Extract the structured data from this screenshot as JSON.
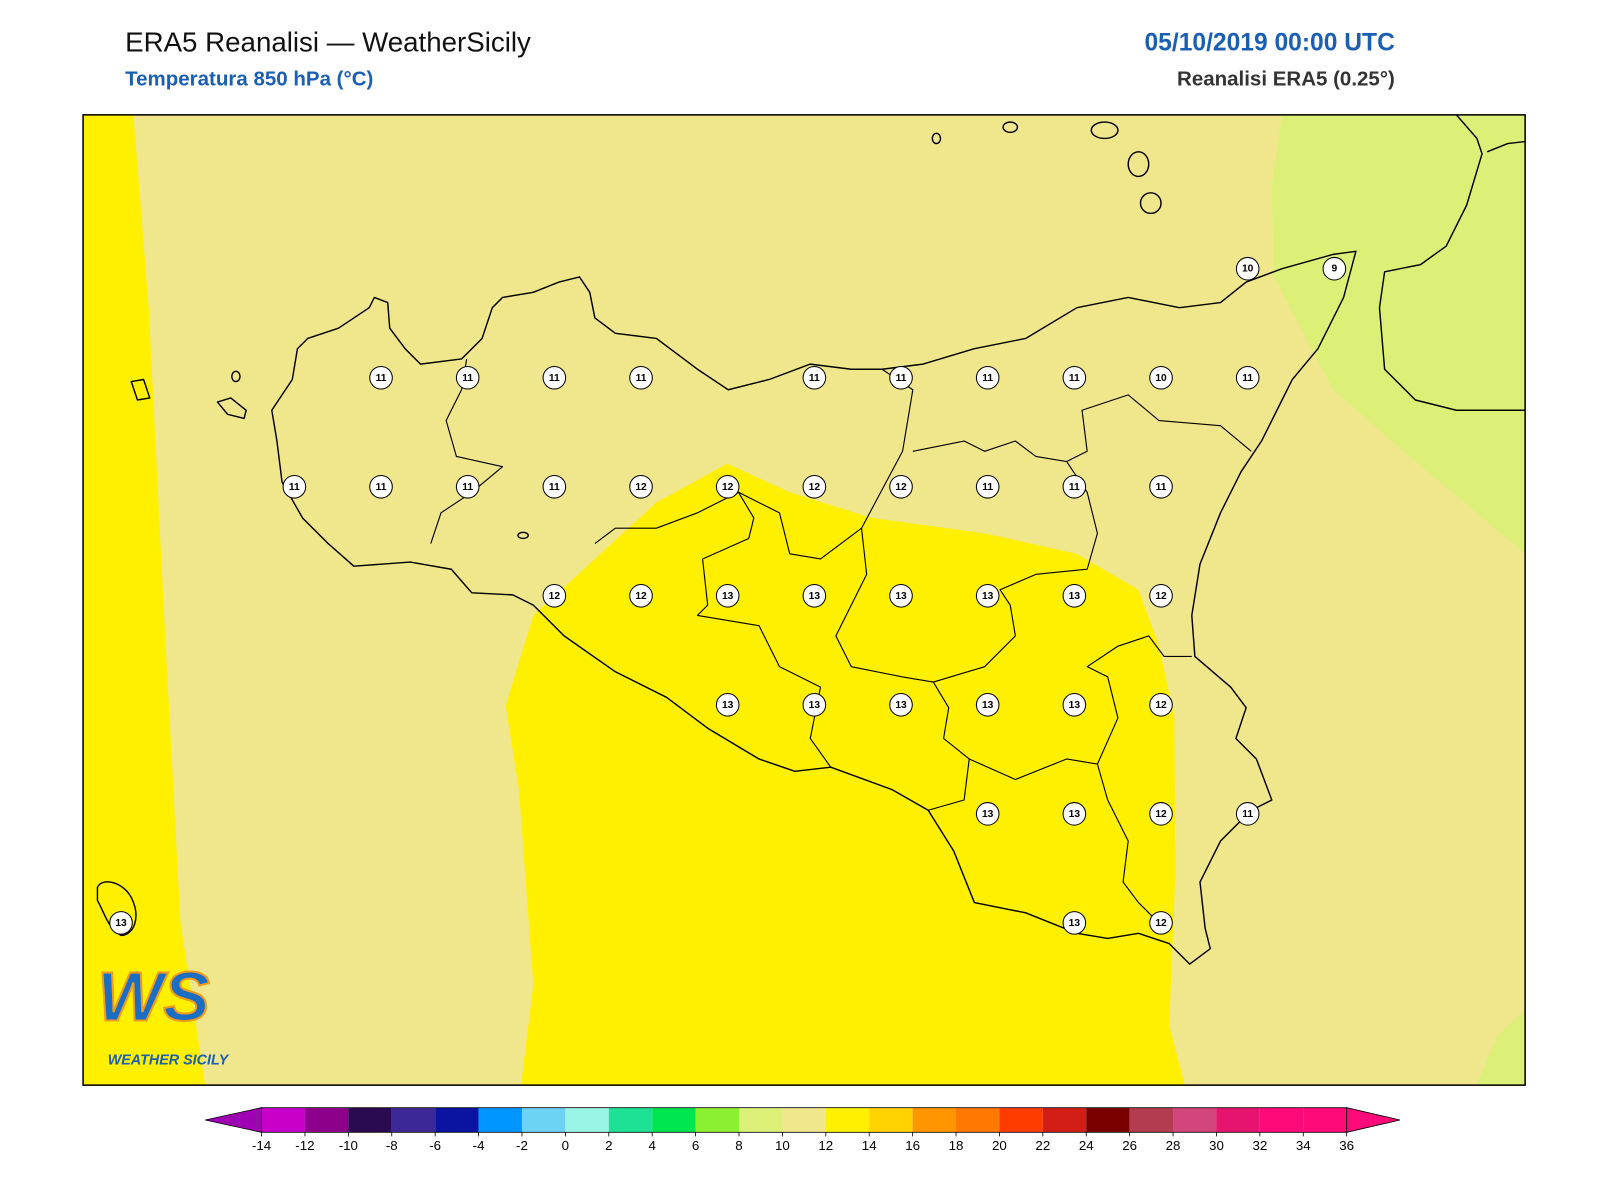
{
  "header": {
    "title": "ERA5 Reanalisi — WeatherSicily",
    "subtitle": "Temperatura 850 hPa (°C)",
    "datetime": "05/10/2019 00:00 UTC",
    "source": "Reanalisi ERA5 (0.25°)"
  },
  "map": {
    "stations": [
      [
        null,
        null,
        null,
        null,
        null,
        null,
        null,
        null,
        null,
        null,
        null,
        null,
        null,
        10,
        9
      ],
      [
        null,
        null,
        null,
        11,
        11,
        11,
        11,
        null,
        11,
        11,
        11,
        11,
        10,
        11,
        null
      ],
      [
        null,
        null,
        11,
        11,
        11,
        11,
        12,
        12,
        12,
        12,
        11,
        11,
        11,
        null,
        null
      ],
      [
        null,
        null,
        null,
        null,
        null,
        12,
        12,
        13,
        13,
        13,
        13,
        13,
        12,
        null,
        null
      ],
      [
        null,
        null,
        null,
        null,
        null,
        null,
        null,
        13,
        13,
        13,
        13,
        13,
        12,
        null,
        null
      ],
      [
        null,
        null,
        null,
        null,
        null,
        null,
        null,
        null,
        null,
        null,
        13,
        13,
        12,
        11,
        null
      ],
      [
        13,
        null,
        null,
        null,
        null,
        null,
        null,
        null,
        null,
        null,
        null,
        13,
        12,
        null,
        null
      ]
    ]
  },
  "colorbar": {
    "ticks": [
      -14,
      -12,
      -10,
      -8,
      -6,
      -4,
      -2,
      0,
      2,
      4,
      6,
      8,
      10,
      12,
      14,
      16,
      18,
      20,
      22,
      24,
      26,
      28,
      30,
      32,
      34,
      36
    ],
    "colors": [
      "#a000b4",
      "#c800c8",
      "#8c008c",
      "#2a0a50",
      "#3c2896",
      "#0a14a0",
      "#0096ff",
      "#6ed2f5",
      "#9bf5e6",
      "#1ee196",
      "#00e650",
      "#8cf032",
      "#dcf078",
      "#f0e68c",
      "#fff000",
      "#ffd200",
      "#ff9600",
      "#ff7800",
      "#ff3c00",
      "#d21e14",
      "#780000",
      "#b43c50",
      "#d2467d",
      "#e6146e",
      "#ff0a78",
      "#ff0a78",
      "#ff0a78"
    ]
  },
  "logo": {
    "mark": "WS",
    "name": "WEATHER SICILY"
  }
}
